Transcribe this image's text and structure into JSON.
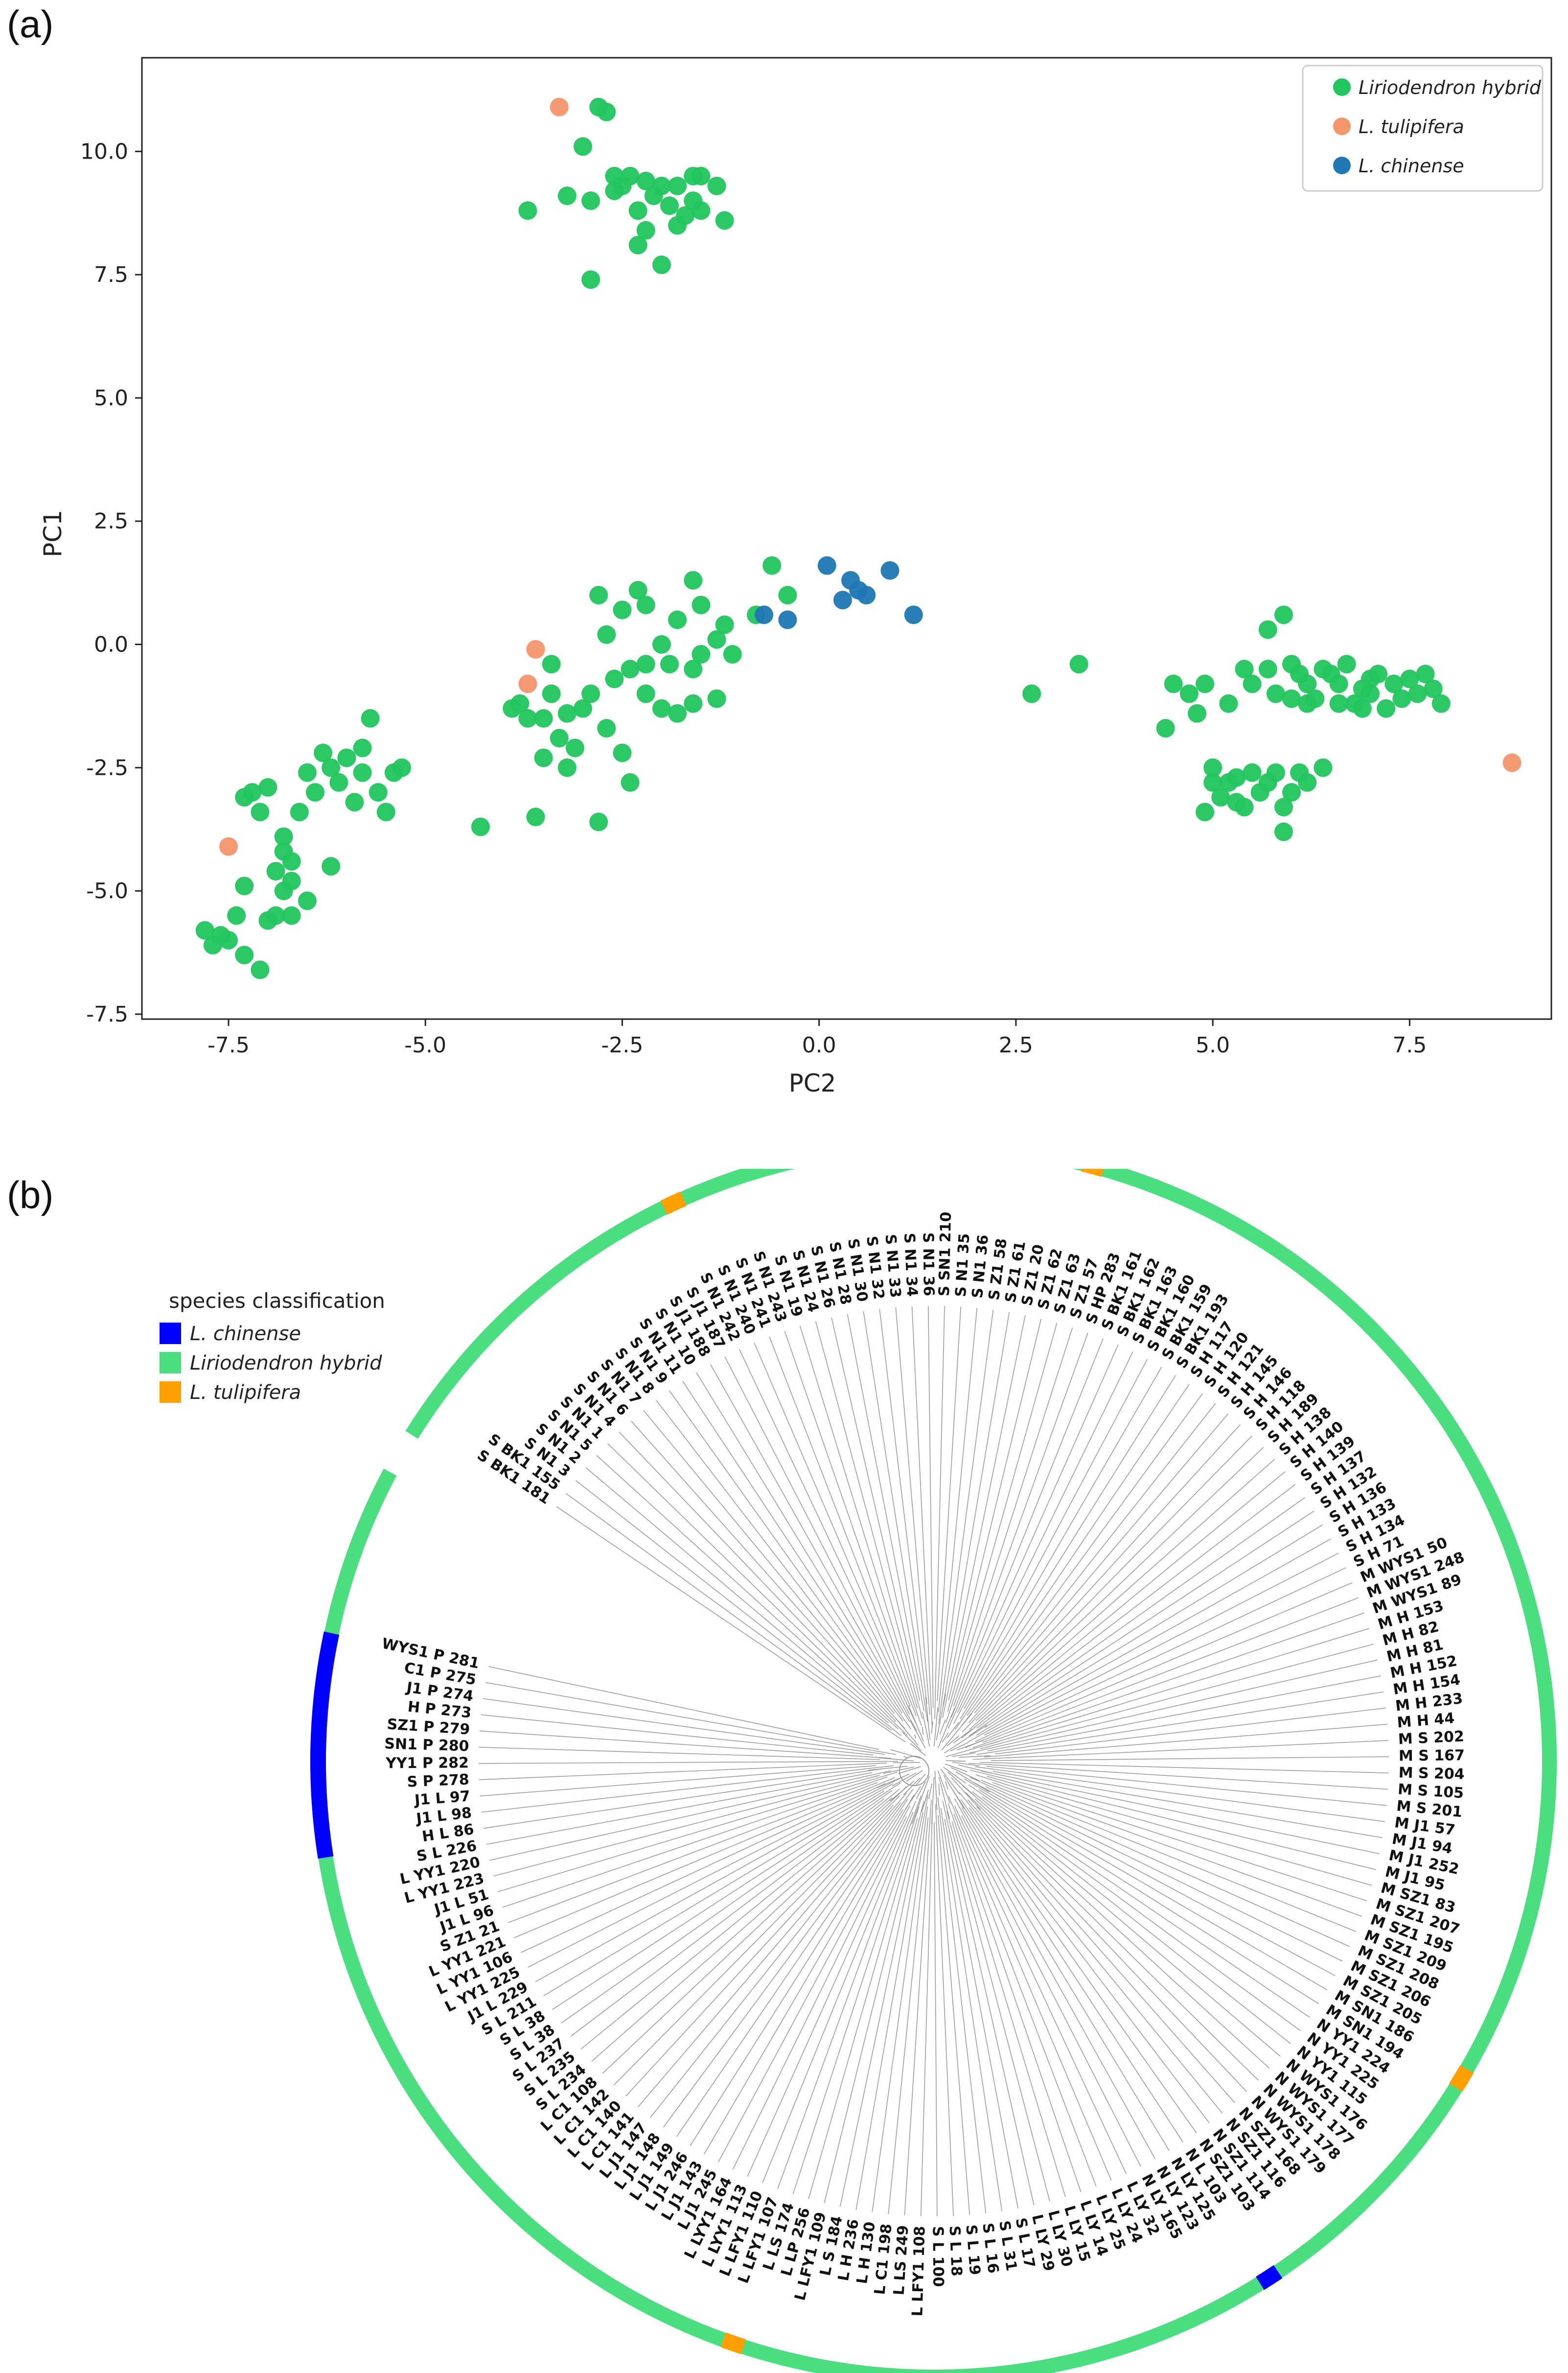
{
  "panel_a_label": "(a)",
  "panel_b_label": "(b)",
  "chart_data": [
    {
      "type": "scatter",
      "title": "",
      "xlabel": "PC2",
      "ylabel": "PC1",
      "xlim": [
        -8.6,
        9.3
      ],
      "ylim": [
        -7.6,
        11.9
      ],
      "xticks": [
        -7.5,
        -5.0,
        -2.5,
        0.0,
        2.5,
        5.0,
        7.5
      ],
      "xtick_labels": [
        "-7.5",
        "-5.0",
        "-2.5",
        "0.0",
        "2.5",
        "5.0",
        "7.5"
      ],
      "yticks": [
        -7.5,
        -5.0,
        -2.5,
        0.0,
        2.5,
        5.0,
        7.5,
        10.0
      ],
      "ytick_labels": [
        "-7.5",
        "-5.0",
        "-2.5",
        "0.0",
        "2.5",
        "5.0",
        "7.5",
        "10.0"
      ],
      "legend_position": "top-right",
      "series": [
        {
          "name": "Liriodendron hybrid",
          "color": "#22c55e",
          "points": [
            [
              -2.8,
              10.9
            ],
            [
              -2.7,
              10.8
            ],
            [
              -3.0,
              10.1
            ],
            [
              -3.7,
              8.8
            ],
            [
              -3.2,
              9.1
            ],
            [
              -2.6,
              9.5
            ],
            [
              -2.4,
              9.5
            ],
            [
              -2.2,
              9.4
            ],
            [
              -2.0,
              9.3
            ],
            [
              -1.8,
              9.3
            ],
            [
              -1.6,
              9.5
            ],
            [
              -1.5,
              9.5
            ],
            [
              -1.3,
              9.3
            ],
            [
              -2.9,
              9.0
            ],
            [
              -2.6,
              9.2
            ],
            [
              -2.3,
              8.8
            ],
            [
              -2.1,
              9.1
            ],
            [
              -1.9,
              8.9
            ],
            [
              -1.7,
              8.7
            ],
            [
              -1.5,
              8.8
            ],
            [
              -1.2,
              8.6
            ],
            [
              -2.2,
              8.4
            ],
            [
              -2.3,
              8.1
            ],
            [
              -2.0,
              7.7
            ],
            [
              -2.9,
              7.4
            ],
            [
              -1.8,
              8.5
            ],
            [
              -1.6,
              9.0
            ],
            [
              -2.5,
              9.3
            ],
            [
              -0.6,
              1.6
            ],
            [
              -0.4,
              1.0
            ],
            [
              -0.8,
              0.6
            ],
            [
              -1.6,
              1.3
            ],
            [
              -1.5,
              0.8
            ],
            [
              -1.2,
              0.4
            ],
            [
              -1.8,
              0.5
            ],
            [
              -2.0,
              0.0
            ],
            [
              -1.9,
              -0.4
            ],
            [
              -1.6,
              -0.5
            ],
            [
              -1.3,
              0.1
            ],
            [
              -2.2,
              -0.4
            ],
            [
              -2.0,
              -1.3
            ],
            [
              -2.3,
              1.1
            ],
            [
              -2.5,
              0.7
            ],
            [
              -2.2,
              0.8
            ],
            [
              -2.7,
              0.2
            ],
            [
              -2.6,
              -0.7
            ],
            [
              -2.4,
              -0.5
            ],
            [
              -2.8,
              1.0
            ],
            [
              -1.1,
              -0.2
            ],
            [
              -1.3,
              -1.1
            ],
            [
              -1.5,
              -0.2
            ],
            [
              -2.9,
              -1.0
            ],
            [
              -3.0,
              -1.3
            ],
            [
              -2.7,
              -1.7
            ],
            [
              -3.4,
              -1.0
            ],
            [
              -3.2,
              -1.4
            ],
            [
              -3.5,
              -1.5
            ],
            [
              -3.3,
              -1.9
            ],
            [
              -3.1,
              -2.1
            ],
            [
              -3.8,
              -1.2
            ],
            [
              -3.7,
              -1.5
            ],
            [
              -3.5,
              -2.3
            ],
            [
              -3.2,
              -2.5
            ],
            [
              -3.6,
              -3.5
            ],
            [
              -4.3,
              -3.7
            ],
            [
              -2.8,
              -3.6
            ],
            [
              -2.5,
              -2.2
            ],
            [
              -2.4,
              -2.8
            ],
            [
              -1.8,
              -1.4
            ],
            [
              -1.6,
              -1.2
            ],
            [
              -2.2,
              -1.0
            ],
            [
              -3.9,
              -1.3
            ],
            [
              -3.4,
              -0.4
            ],
            [
              -5.7,
              -1.5
            ],
            [
              -5.8,
              -2.1
            ],
            [
              -6.0,
              -2.3
            ],
            [
              -6.2,
              -2.5
            ],
            [
              -6.5,
              -2.6
            ],
            [
              -6.4,
              -3.0
            ],
            [
              -6.1,
              -2.8
            ],
            [
              -5.8,
              -2.6
            ],
            [
              -5.6,
              -3.0
            ],
            [
              -5.5,
              -3.4
            ],
            [
              -5.9,
              -3.2
            ],
            [
              -6.3,
              -2.2
            ],
            [
              -6.6,
              -3.4
            ],
            [
              -6.8,
              -4.2
            ],
            [
              -6.9,
              -4.6
            ],
            [
              -7.1,
              -3.4
            ],
            [
              -7.2,
              -3.0
            ],
            [
              -7.0,
              -2.9
            ],
            [
              -7.3,
              -3.1
            ],
            [
              -6.8,
              -3.9
            ],
            [
              -6.7,
              -4.4
            ],
            [
              -6.7,
              -5.5
            ],
            [
              -6.9,
              -5.5
            ],
            [
              -6.2,
              -4.5
            ],
            [
              -6.5,
              -5.2
            ],
            [
              -7.3,
              -4.9
            ],
            [
              -7.4,
              -5.5
            ],
            [
              -7.5,
              -6.0
            ],
            [
              -7.6,
              -5.9
            ],
            [
              -7.8,
              -5.8
            ],
            [
              -7.7,
              -6.1
            ],
            [
              -7.3,
              -6.3
            ],
            [
              -7.0,
              -5.6
            ],
            [
              -7.1,
              -6.6
            ],
            [
              -6.7,
              -4.8
            ],
            [
              -6.8,
              -5.0
            ],
            [
              -5.3,
              -2.5
            ],
            [
              -5.4,
              -2.6
            ],
            [
              2.7,
              -1.0
            ],
            [
              3.3,
              -0.4
            ],
            [
              5.5,
              -0.8
            ],
            [
              5.9,
              0.6
            ],
            [
              5.7,
              0.3
            ],
            [
              6.0,
              -0.4
            ],
            [
              6.1,
              -0.6
            ],
            [
              6.2,
              -0.8
            ],
            [
              6.3,
              -1.1
            ],
            [
              6.4,
              -0.5
            ],
            [
              6.5,
              -0.6
            ],
            [
              6.6,
              -0.8
            ],
            [
              6.7,
              -0.4
            ],
            [
              6.8,
              -1.2
            ],
            [
              6.9,
              -0.9
            ],
            [
              7.0,
              -0.7
            ],
            [
              7.0,
              -1.0
            ],
            [
              7.1,
              -0.6
            ],
            [
              7.2,
              -1.3
            ],
            [
              7.3,
              -0.8
            ],
            [
              7.4,
              -1.1
            ],
            [
              7.5,
              -0.7
            ],
            [
              7.6,
              -1.0
            ],
            [
              7.7,
              -0.6
            ],
            [
              7.8,
              -0.9
            ],
            [
              7.9,
              -1.2
            ],
            [
              6.9,
              -1.3
            ],
            [
              6.6,
              -1.2
            ],
            [
              6.2,
              -1.2
            ],
            [
              5.8,
              -1.0
            ],
            [
              5.4,
              -0.5
            ],
            [
              5.2,
              -1.2
            ],
            [
              4.9,
              -0.8
            ],
            [
              4.5,
              -0.8
            ],
            [
              4.4,
              -1.7
            ],
            [
              4.7,
              -1.0
            ],
            [
              4.8,
              -1.4
            ],
            [
              6.0,
              -1.1
            ],
            [
              5.7,
              -0.5
            ],
            [
              5.0,
              -2.5
            ],
            [
              5.2,
              -2.8
            ],
            [
              5.1,
              -3.1
            ],
            [
              5.3,
              -2.7
            ],
            [
              5.4,
              -3.3
            ],
            [
              5.5,
              -2.6
            ],
            [
              5.6,
              -3.0
            ],
            [
              5.7,
              -2.8
            ],
            [
              5.9,
              -3.3
            ],
            [
              6.0,
              -3.0
            ],
            [
              6.1,
              -2.6
            ],
            [
              6.2,
              -2.8
            ],
            [
              6.4,
              -2.5
            ],
            [
              5.9,
              -3.8
            ],
            [
              5.8,
              -2.6
            ],
            [
              5.3,
              -3.2
            ],
            [
              4.9,
              -3.4
            ],
            [
              5.0,
              -2.8
            ]
          ]
        },
        {
          "name": "L. tulipifera",
          "color": "#f4956b",
          "points": [
            [
              -3.3,
              10.9
            ],
            [
              -3.6,
              -0.1
            ],
            [
              -3.7,
              -0.8
            ],
            [
              -7.5,
              -4.1
            ],
            [
              8.8,
              -2.4
            ]
          ]
        },
        {
          "name": "L. chinense",
          "color": "#1f77b4",
          "points": [
            [
              0.1,
              1.6
            ],
            [
              0.4,
              1.3
            ],
            [
              0.6,
              1.0
            ],
            [
              0.9,
              1.5
            ],
            [
              0.3,
              0.9
            ],
            [
              0.5,
              1.1
            ],
            [
              -0.7,
              0.6
            ],
            [
              -0.4,
              0.5
            ],
            [
              1.2,
              0.6
            ]
          ]
        }
      ]
    },
    {
      "type": "tree",
      "title": "Circular phylogenetic tree",
      "legend_title": "species classification",
      "legend": [
        {
          "name": "L. chinense",
          "color": "#0000ff"
        },
        {
          "name": "Liriodendron hybrid",
          "color": "#4ade80"
        },
        {
          "name": "L. tulipifera",
          "color": "#ff9f00"
        }
      ],
      "ring_segments": [
        {
          "class": "L. chinense",
          "start_deg": -189,
          "end_deg": -168
        },
        {
          "class": "L. tulipifera",
          "start_deg": -76,
          "end_deg": -74
        },
        {
          "class": "L. tulipifera",
          "start_deg": -116,
          "end_deg": -114
        },
        {
          "class": "L. tulipifera",
          "start_deg": 30,
          "end_deg": 32
        },
        {
          "class": "L. chinense",
          "start_deg": 56,
          "end_deg": 58
        },
        {
          "class": "L. tulipifera",
          "start_deg": 108,
          "end_deg": 110
        }
      ],
      "ring_gap_deg": [
        -152,
        -148
      ],
      "leaves": [
        "S BK1 181",
        "S BK1 155",
        "S N1 3",
        "S N1 2",
        "S N1 5",
        "S N1 1",
        "S N1 4",
        "S N1 6",
        "S N1 7",
        "S N1 8",
        "S N1 9",
        "S N1 11",
        "S N1 10",
        "S J1 188",
        "S J1 187",
        "S N1 242",
        "S N1 240",
        "S N1 241",
        "S N1 243",
        "S N1 19",
        "S N1 24",
        "S N1 26",
        "S N1 28",
        "S N1 30",
        "S N1 32",
        "S N1 33",
        "S N1 34",
        "S N1 36",
        "S SN1 210",
        "S N1 35",
        "S N1 36",
        "S Z1 58",
        "S Z1 61",
        "S Z1 20",
        "S Z1 62",
        "S Z1 63",
        "S Z1 57",
        "S HP 283",
        "S BK1 161",
        "S BK1 162",
        "S BK1 163",
        "S BK1 160",
        "S BK1 159",
        "S BK1 193",
        "S H 117",
        "S H 120",
        "S H 121",
        "S H 145",
        "S H 146",
        "S H 118",
        "S H 189",
        "S H 138",
        "S H 140",
        "S H 139",
        "S H 137",
        "S H 132",
        "S H 136",
        "S H 133",
        "S H 134",
        "S H 71",
        "M WYS1 50",
        "M WYS1 248",
        "M WYS1 89",
        "M H 153",
        "M H 82",
        "M H 81",
        "M H 152",
        "M H 154",
        "M H 233",
        "M H 44",
        "M S 202",
        "M S 167",
        "M S 204",
        "M S 105",
        "M S 201",
        "M J1 57",
        "M J1 94",
        "M J1 252",
        "M J1 95",
        "M SZ1 83",
        "M SZ1 207",
        "M SZ1 195",
        "M SZ1 209",
        "M SZ1 208",
        "M SZ1 206",
        "M SZ1 205",
        "M SN1 186",
        "M SN1 194",
        "N YY1 224",
        "N YY1 225",
        "N YY1 115",
        "N WYS1 176",
        "N WYS1 177",
        "N WYS1 178",
        "N WYS1 179",
        "N SZ1 168",
        "N SZ1 116",
        "N SZ1 114",
        "N SZ1 103",
        "N L 103",
        "N LY 125",
        "N LY 123",
        "N LY 165",
        "L LY 32",
        "L LY 24",
        "L LY 25",
        "L LY 14",
        "L LY 15",
        "L LY 30",
        "L LY 29",
        "S L 17",
        "S L 31",
        "S L 16",
        "S L 19",
        "S L 18",
        "S L 100",
        "L LFY1 108",
        "L LS 249",
        "L C1 198",
        "L H 130",
        "L H 236",
        "L S 184",
        "L LFY1 109",
        "L LP 256",
        "L LS 174",
        "L LFY1 107",
        "L LFY1 110",
        "L LYY1 113",
        "L LYY1 164",
        "L J1 245",
        "L J1 143",
        "L J1 246",
        "L J1 149",
        "L J1 148",
        "L J1 147",
        "L C1 141",
        "L C1 140",
        "L C1 142",
        "L C1 108",
        "S L 234",
        "S L 235",
        "S L 237",
        "S L 38",
        "S L 38",
        "S L 211",
        "J1 L 229",
        "L YY1 225",
        "L YY1 106",
        "L YY1 221",
        "S Z1 21",
        "J1 L 96",
        "J1 L 51",
        "L YY1 223",
        "L YY1 220",
        "S L 226",
        "H L 86",
        "J1 L 98",
        "J1 L 97",
        "S P 278",
        "YY1 P 282",
        "SN1 P 280",
        "SZ1 P 279",
        "H P 273",
        "J1 P 274",
        "C1 P 275",
        "WYS1 P 281"
      ]
    }
  ]
}
